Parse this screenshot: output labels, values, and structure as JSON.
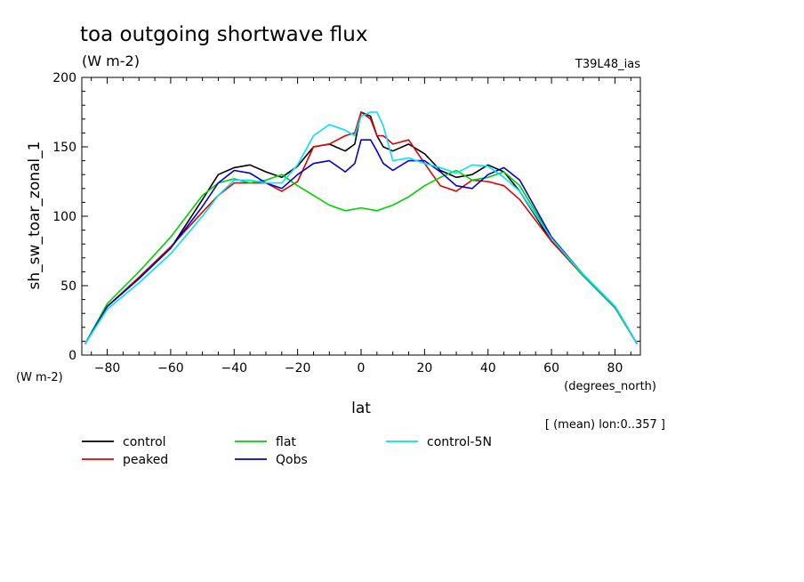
{
  "header": {
    "title": "toa outgoing shortwave flux",
    "units": "(W m-2)",
    "model": "T39L48_ias",
    "mean_note": "[ (mean) lon:0..357 ]"
  },
  "colors": {
    "control": "#000000",
    "peaked": "#e00000",
    "flat": "#00d000",
    "Qobs": "#0000d0",
    "control-5N": "#00e0ff"
  },
  "chart_data": {
    "type": "line",
    "title": "toa outgoing shortwave flux",
    "subtitle": "(W m-2)",
    "xlabel": "lat",
    "xunits": "(degrees_north)",
    "ylabel": "sh_sw_toar_zonal_1",
    "yunits": "(W m-2)",
    "xlim": [
      -88,
      88
    ],
    "ylim": [
      0,
      200
    ],
    "xticks": [
      -80,
      -60,
      -40,
      -20,
      0,
      20,
      40,
      60,
      80
    ],
    "yticks": [
      0,
      50,
      100,
      150,
      200
    ],
    "legend_position": "bottom",
    "series": [
      {
        "name": "control",
        "x": [
          -87,
          -80,
          -70,
          -60,
          -50,
          -45,
          -40,
          -35,
          -30,
          -25,
          -20,
          -15,
          -10,
          -5,
          -2,
          0,
          3,
          5,
          7,
          10,
          15,
          20,
          25,
          30,
          35,
          40,
          45,
          50,
          60,
          70,
          80,
          87
        ],
        "y": [
          8,
          35,
          55,
          77,
          112,
          130,
          135,
          137,
          132,
          128,
          136,
          150,
          152,
          147,
          152,
          175,
          172,
          158,
          150,
          147,
          152,
          145,
          133,
          128,
          130,
          137,
          132,
          118,
          82,
          58,
          35,
          8
        ]
      },
      {
        "name": "peaked",
        "x": [
          -87,
          -80,
          -70,
          -60,
          -50,
          -45,
          -40,
          -35,
          -30,
          -25,
          -20,
          -15,
          -10,
          -5,
          -2,
          0,
          3,
          5,
          7,
          10,
          15,
          20,
          25,
          30,
          35,
          40,
          45,
          50,
          60,
          70,
          80,
          87
        ],
        "y": [
          8,
          35,
          56,
          78,
          103,
          115,
          124,
          124,
          124,
          118,
          125,
          150,
          152,
          158,
          160,
          175,
          170,
          158,
          158,
          152,
          155,
          138,
          122,
          118,
          126,
          125,
          122,
          112,
          82,
          57,
          34,
          8
        ]
      },
      {
        "name": "flat",
        "x": [
          -87,
          -80,
          -70,
          -60,
          -50,
          -45,
          -40,
          -35,
          -30,
          -25,
          -20,
          -15,
          -10,
          -5,
          0,
          5,
          10,
          15,
          20,
          25,
          30,
          35,
          40,
          45,
          50,
          60,
          70,
          80,
          87
        ],
        "y": [
          8,
          37,
          60,
          85,
          115,
          124,
          127,
          124,
          126,
          130,
          122,
          115,
          108,
          104,
          106,
          104,
          108,
          114,
          122,
          128,
          133,
          126,
          128,
          132,
          122,
          84,
          57,
          34,
          8
        ]
      },
      {
        "name": "Qobs",
        "x": [
          -87,
          -80,
          -70,
          -60,
          -50,
          -45,
          -40,
          -35,
          -30,
          -25,
          -20,
          -15,
          -10,
          -5,
          -2,
          0,
          3,
          5,
          7,
          10,
          15,
          20,
          25,
          30,
          35,
          40,
          45,
          50,
          60,
          70,
          80,
          87
        ],
        "y": [
          8,
          35,
          55,
          77,
          107,
          124,
          133,
          131,
          124,
          120,
          130,
          138,
          140,
          132,
          138,
          155,
          155,
          147,
          138,
          133,
          140,
          140,
          132,
          122,
          120,
          130,
          135,
          126,
          85,
          58,
          35,
          8
        ]
      },
      {
        "name": "control-5N",
        "x": [
          -87,
          -80,
          -70,
          -60,
          -50,
          -45,
          -40,
          -35,
          -30,
          -25,
          -20,
          -15,
          -10,
          -5,
          -2,
          0,
          3,
          5,
          7,
          10,
          15,
          20,
          25,
          30,
          35,
          40,
          45,
          50,
          60,
          70,
          80,
          87
        ],
        "y": [
          8,
          33,
          52,
          73,
          100,
          115,
          126,
          126,
          124,
          124,
          137,
          158,
          166,
          162,
          158,
          172,
          175,
          175,
          165,
          140,
          142,
          138,
          135,
          131,
          137,
          136,
          128,
          118,
          84,
          58,
          35,
          8
        ]
      }
    ]
  }
}
